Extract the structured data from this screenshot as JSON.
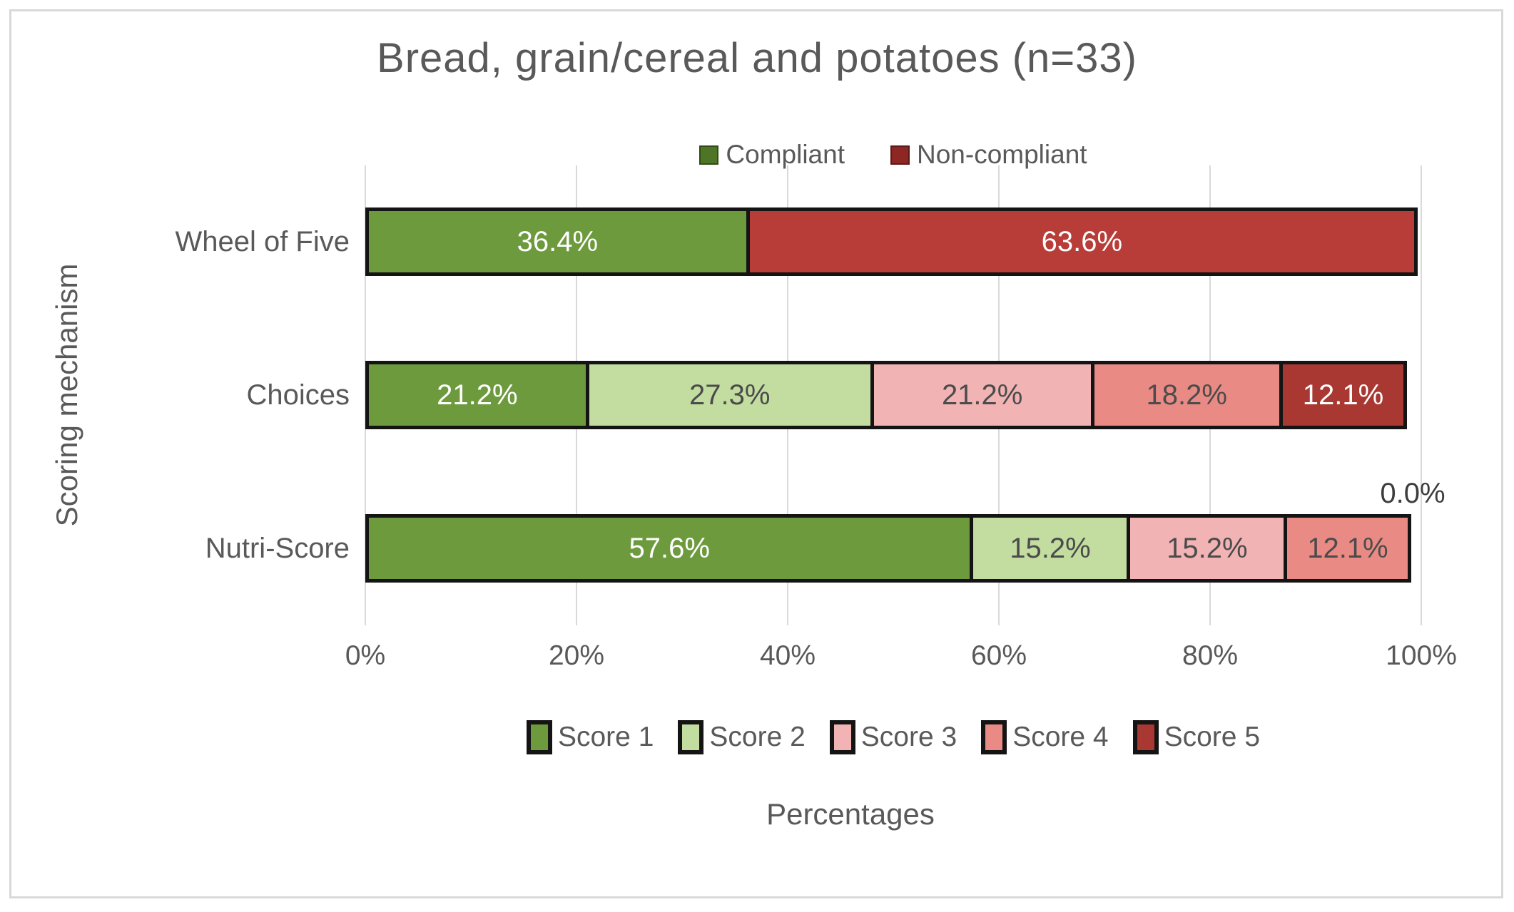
{
  "chart_data": {
    "type": "bar",
    "variant": "stacked-horizontal",
    "title": "Bread, grain/cereal and potatoes (n=33)",
    "xlabel": "Percentages",
    "ylabel": "Scoring mechanism",
    "xlim": [
      0,
      100
    ],
    "grid": "vertical",
    "background_color": "#FFFFFF",
    "frame_color": "#D9D9D9",
    "grid_color": "#D9D9D9",
    "segment_border_color": "#141414",
    "text_color": "#595959",
    "x_ticks": [
      {
        "value": 0,
        "label": "0%"
      },
      {
        "value": 20,
        "label": "20%"
      },
      {
        "value": 40,
        "label": "40%"
      },
      {
        "value": 60,
        "label": "60%"
      },
      {
        "value": 80,
        "label": "80%"
      },
      {
        "value": 100,
        "label": "100%"
      }
    ],
    "legend_top": {
      "position": "top-center",
      "items": [
        {
          "label": "Compliant",
          "color": "#4E7426"
        },
        {
          "label": "Non-compliant",
          "color": "#8E2723"
        }
      ]
    },
    "legend_bottom": {
      "position": "bottom-center",
      "items": [
        {
          "label": "Score 1",
          "color": "#6E9A3E"
        },
        {
          "label": "Score 2",
          "color": "#C3DCA0"
        },
        {
          "label": "Score 3",
          "color": "#F2B3B4"
        },
        {
          "label": "Score 4",
          "color": "#E98B84"
        },
        {
          "label": "Score 5",
          "color": "#A93732"
        }
      ]
    },
    "categories": [
      "Wheel of Five",
      "Choices",
      "Nutri-Score"
    ],
    "rows": [
      {
        "category": "Wheel of Five",
        "segments": [
          {
            "series": "Compliant",
            "value": 36.4,
            "label": "36.4%",
            "color": "#6E9A3E",
            "label_color": "#FFFFFF"
          },
          {
            "series": "Non-compliant",
            "value": 63.6,
            "label": "63.6%",
            "color": "#B83D38",
            "label_color": "#FFFFFF"
          }
        ]
      },
      {
        "category": "Choices",
        "segments": [
          {
            "series": "Score 1",
            "value": 21.2,
            "label": "21.2%",
            "color": "#6E9A3E",
            "label_color": "#FFFFFF"
          },
          {
            "series": "Score 2",
            "value": 27.3,
            "label": "27.3%",
            "color": "#C3DCA0",
            "label_color": "#4B4B4B"
          },
          {
            "series": "Score 3",
            "value": 21.2,
            "label": "21.2%",
            "color": "#F2B3B4",
            "label_color": "#4B4B4B"
          },
          {
            "series": "Score 4",
            "value": 18.2,
            "label": "18.2%",
            "color": "#E98B84",
            "label_color": "#4B4B4B"
          },
          {
            "series": "Score 5",
            "value": 12.1,
            "label": "12.1%",
            "color": "#A93732",
            "label_color": "#FFFFFF"
          }
        ]
      },
      {
        "category": "Nutri-Score",
        "segments": [
          {
            "series": "Score 1",
            "value": 57.6,
            "label": "57.6%",
            "color": "#6E9A3E",
            "label_color": "#FFFFFF"
          },
          {
            "series": "Score 2",
            "value": 15.2,
            "label": "15.2%",
            "color": "#C3DCA0",
            "label_color": "#4B4B4B"
          },
          {
            "series": "Score 3",
            "value": 15.2,
            "label": "15.2%",
            "color": "#F2B3B4",
            "label_color": "#4B4B4B"
          },
          {
            "series": "Score 4",
            "value": 12.1,
            "label": "12.1%",
            "color": "#E98B84",
            "label_color": "#4B4B4B"
          },
          {
            "series": "Score 5",
            "value": 0.0,
            "label": "0.0%",
            "color": "#A93732",
            "label_color": "#3D3D3D",
            "outside": true
          }
        ]
      }
    ]
  }
}
